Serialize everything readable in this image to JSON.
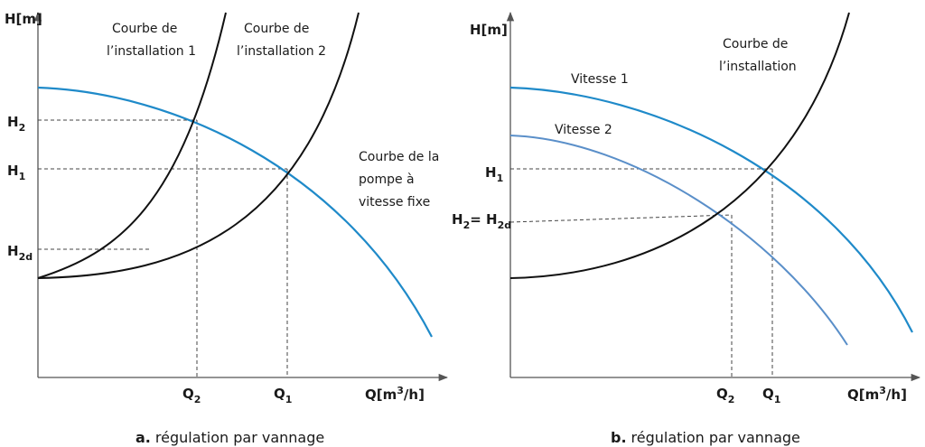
{
  "panel_a": {
    "y_label": "H[m]",
    "x_label": [
      "Q[m",
      "3",
      "/h]"
    ],
    "h2": [
      "H",
      "2"
    ],
    "h1": [
      "H",
      "1"
    ],
    "h2d": [
      "H",
      "2d"
    ],
    "q2": [
      "Q",
      "2"
    ],
    "q1": [
      "Q",
      "1"
    ],
    "curve_1": [
      "Courbe de",
      "l’installation 1"
    ],
    "curve_2": [
      "Courbe de",
      "l’installation 2"
    ],
    "pump": [
      "Courbe de la",
      "pompe à",
      "vitesse fixe"
    ],
    "caption": [
      "a.",
      "régulation par vannage"
    ]
  },
  "panel_b": {
    "y_label": "H[m]",
    "x_label": [
      "Q[m",
      "3",
      "/h]"
    ],
    "h1": [
      "H",
      "1"
    ],
    "h2": [
      "H",
      "2",
      "= H",
      "2d"
    ],
    "q2": [
      "Q",
      "2"
    ],
    "q1": [
      "Q",
      "1"
    ],
    "speed_1": "Vitesse 1",
    "speed_2": "Vitesse 2",
    "curve": [
      "Courbe de",
      "l’installation"
    ],
    "caption": [
      "b.",
      "régulation par vannage"
    ]
  }
}
